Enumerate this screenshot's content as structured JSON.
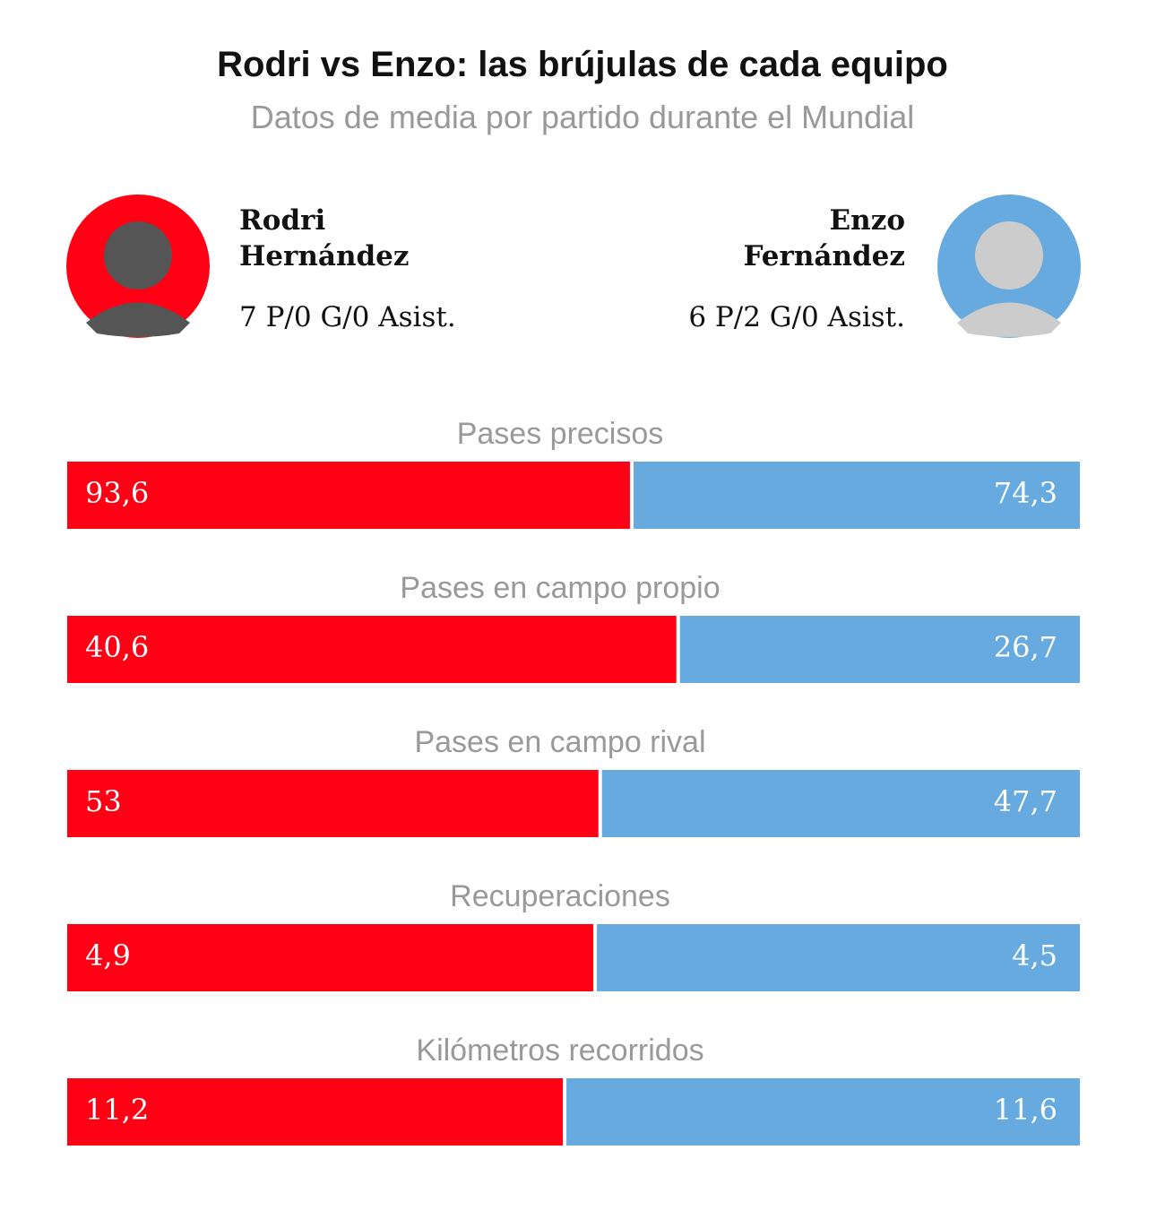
{
  "chart_data": {
    "type": "bar",
    "stacking": "percent",
    "orientation": "horizontal",
    "title": "Rodri vs Enzo: las brújulas de cada equipo",
    "subtitle": "Datos de media por partido durante el Mundial",
    "categories": [
      "Pases precisos",
      "Pases en campo propio",
      "Pases en campo rival",
      "Recuperaciones",
      "Kilómetros recorridos"
    ],
    "series": [
      {
        "name": "Rodri Hernández",
        "stats": "7 P/0 G/0 Asist.",
        "color": "#ff0015",
        "values": [
          93.6,
          40.6,
          53,
          4.9,
          11.2
        ],
        "value_labels": [
          "93,6",
          "40,6",
          "53",
          "4,9",
          "11,2"
        ]
      },
      {
        "name": "Enzo Fernández",
        "stats": "6 P/2 G/0 Asist.",
        "color": "#66aadf",
        "values": [
          74.3,
          26.7,
          47.7,
          4.5,
          11.6
        ],
        "value_labels": [
          "74,3",
          "26,7",
          "47,7",
          "4,5",
          "11,6"
        ]
      }
    ]
  }
}
